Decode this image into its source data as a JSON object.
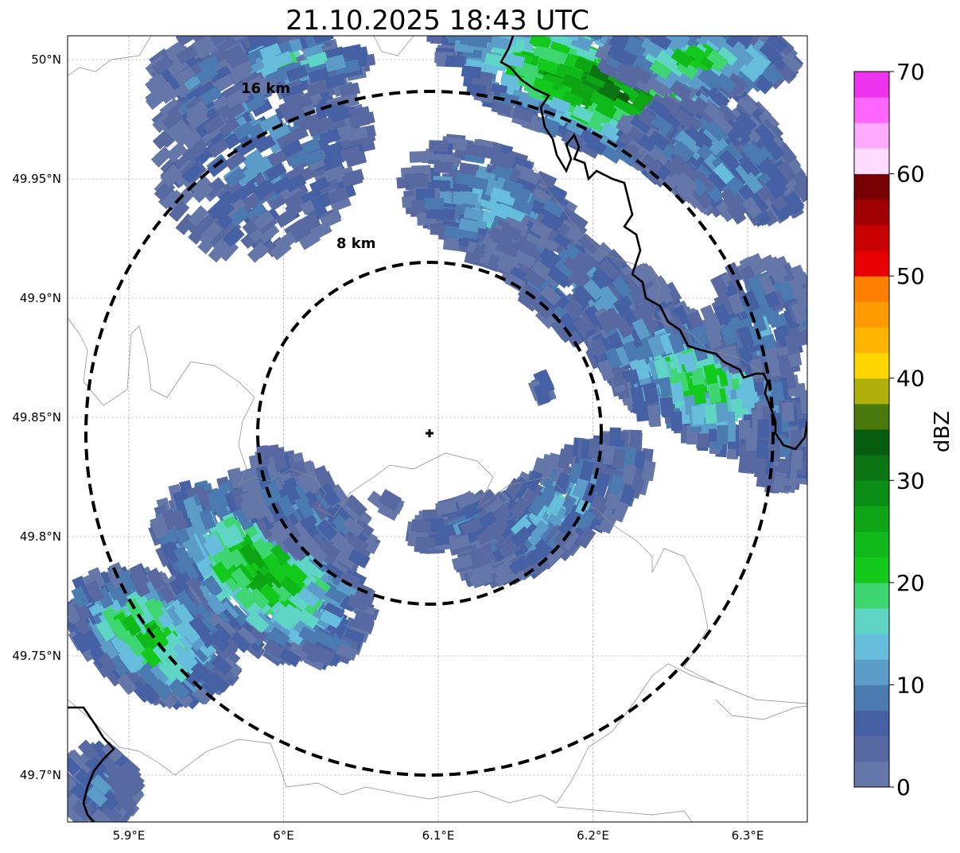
{
  "title": "21.10.2025 18:43 UTC",
  "map": {
    "lon_ticks": [
      {
        "value": 5.9,
        "label": "5.9°E"
      },
      {
        "value": 6.0,
        "label": "6°E"
      },
      {
        "value": 6.1,
        "label": "6.1°E"
      },
      {
        "value": 6.2,
        "label": "6.2°E"
      },
      {
        "value": 6.3,
        "label": "6.3°E"
      }
    ],
    "lat_ticks": [
      {
        "value": 50.0,
        "label": "50°N"
      },
      {
        "value": 49.95,
        "label": "49.95°N"
      },
      {
        "value": 49.9,
        "label": "49.9°N"
      },
      {
        "value": 49.85,
        "label": "49.85°N"
      },
      {
        "value": 49.8,
        "label": "49.8°N"
      },
      {
        "value": 49.75,
        "label": "49.75°N"
      },
      {
        "value": 49.7,
        "label": "49.7°N"
      }
    ],
    "extent": {
      "lon": [
        5.86,
        6.34
      ],
      "lat": [
        49.68,
        50.01
      ]
    },
    "radar_site": {
      "lon": 6.095,
      "lat": 49.843
    },
    "rings": [
      {
        "radius_km": 16,
        "label": "16 km"
      },
      {
        "radius_km": 8,
        "label": "8 km"
      }
    ]
  },
  "colorbar": {
    "label": "dBZ",
    "min": 0,
    "max": 70,
    "step": 2.5,
    "ticks": [
      "0",
      "10",
      "20",
      "30",
      "40",
      "50",
      "60",
      "70"
    ],
    "colors": [
      "#6477a8",
      "#5769a0",
      "#4560a3",
      "#4b7ab0",
      "#5b9cc8",
      "#66bedc",
      "#5fd6c5",
      "#3ed670",
      "#13c91c",
      "#10b91a",
      "#0ea515",
      "#0a8e15",
      "#0b7513",
      "#085c0e",
      "#4a7a0c",
      "#b0b00a",
      "#ffd700",
      "#ffb400",
      "#ff9b00",
      "#ff7f00",
      "#e60000",
      "#c80000",
      "#a00000",
      "#780000",
      "#ffdcff",
      "#ffaaff",
      "#ff66ff",
      "#ee33ee"
    ]
  }
}
